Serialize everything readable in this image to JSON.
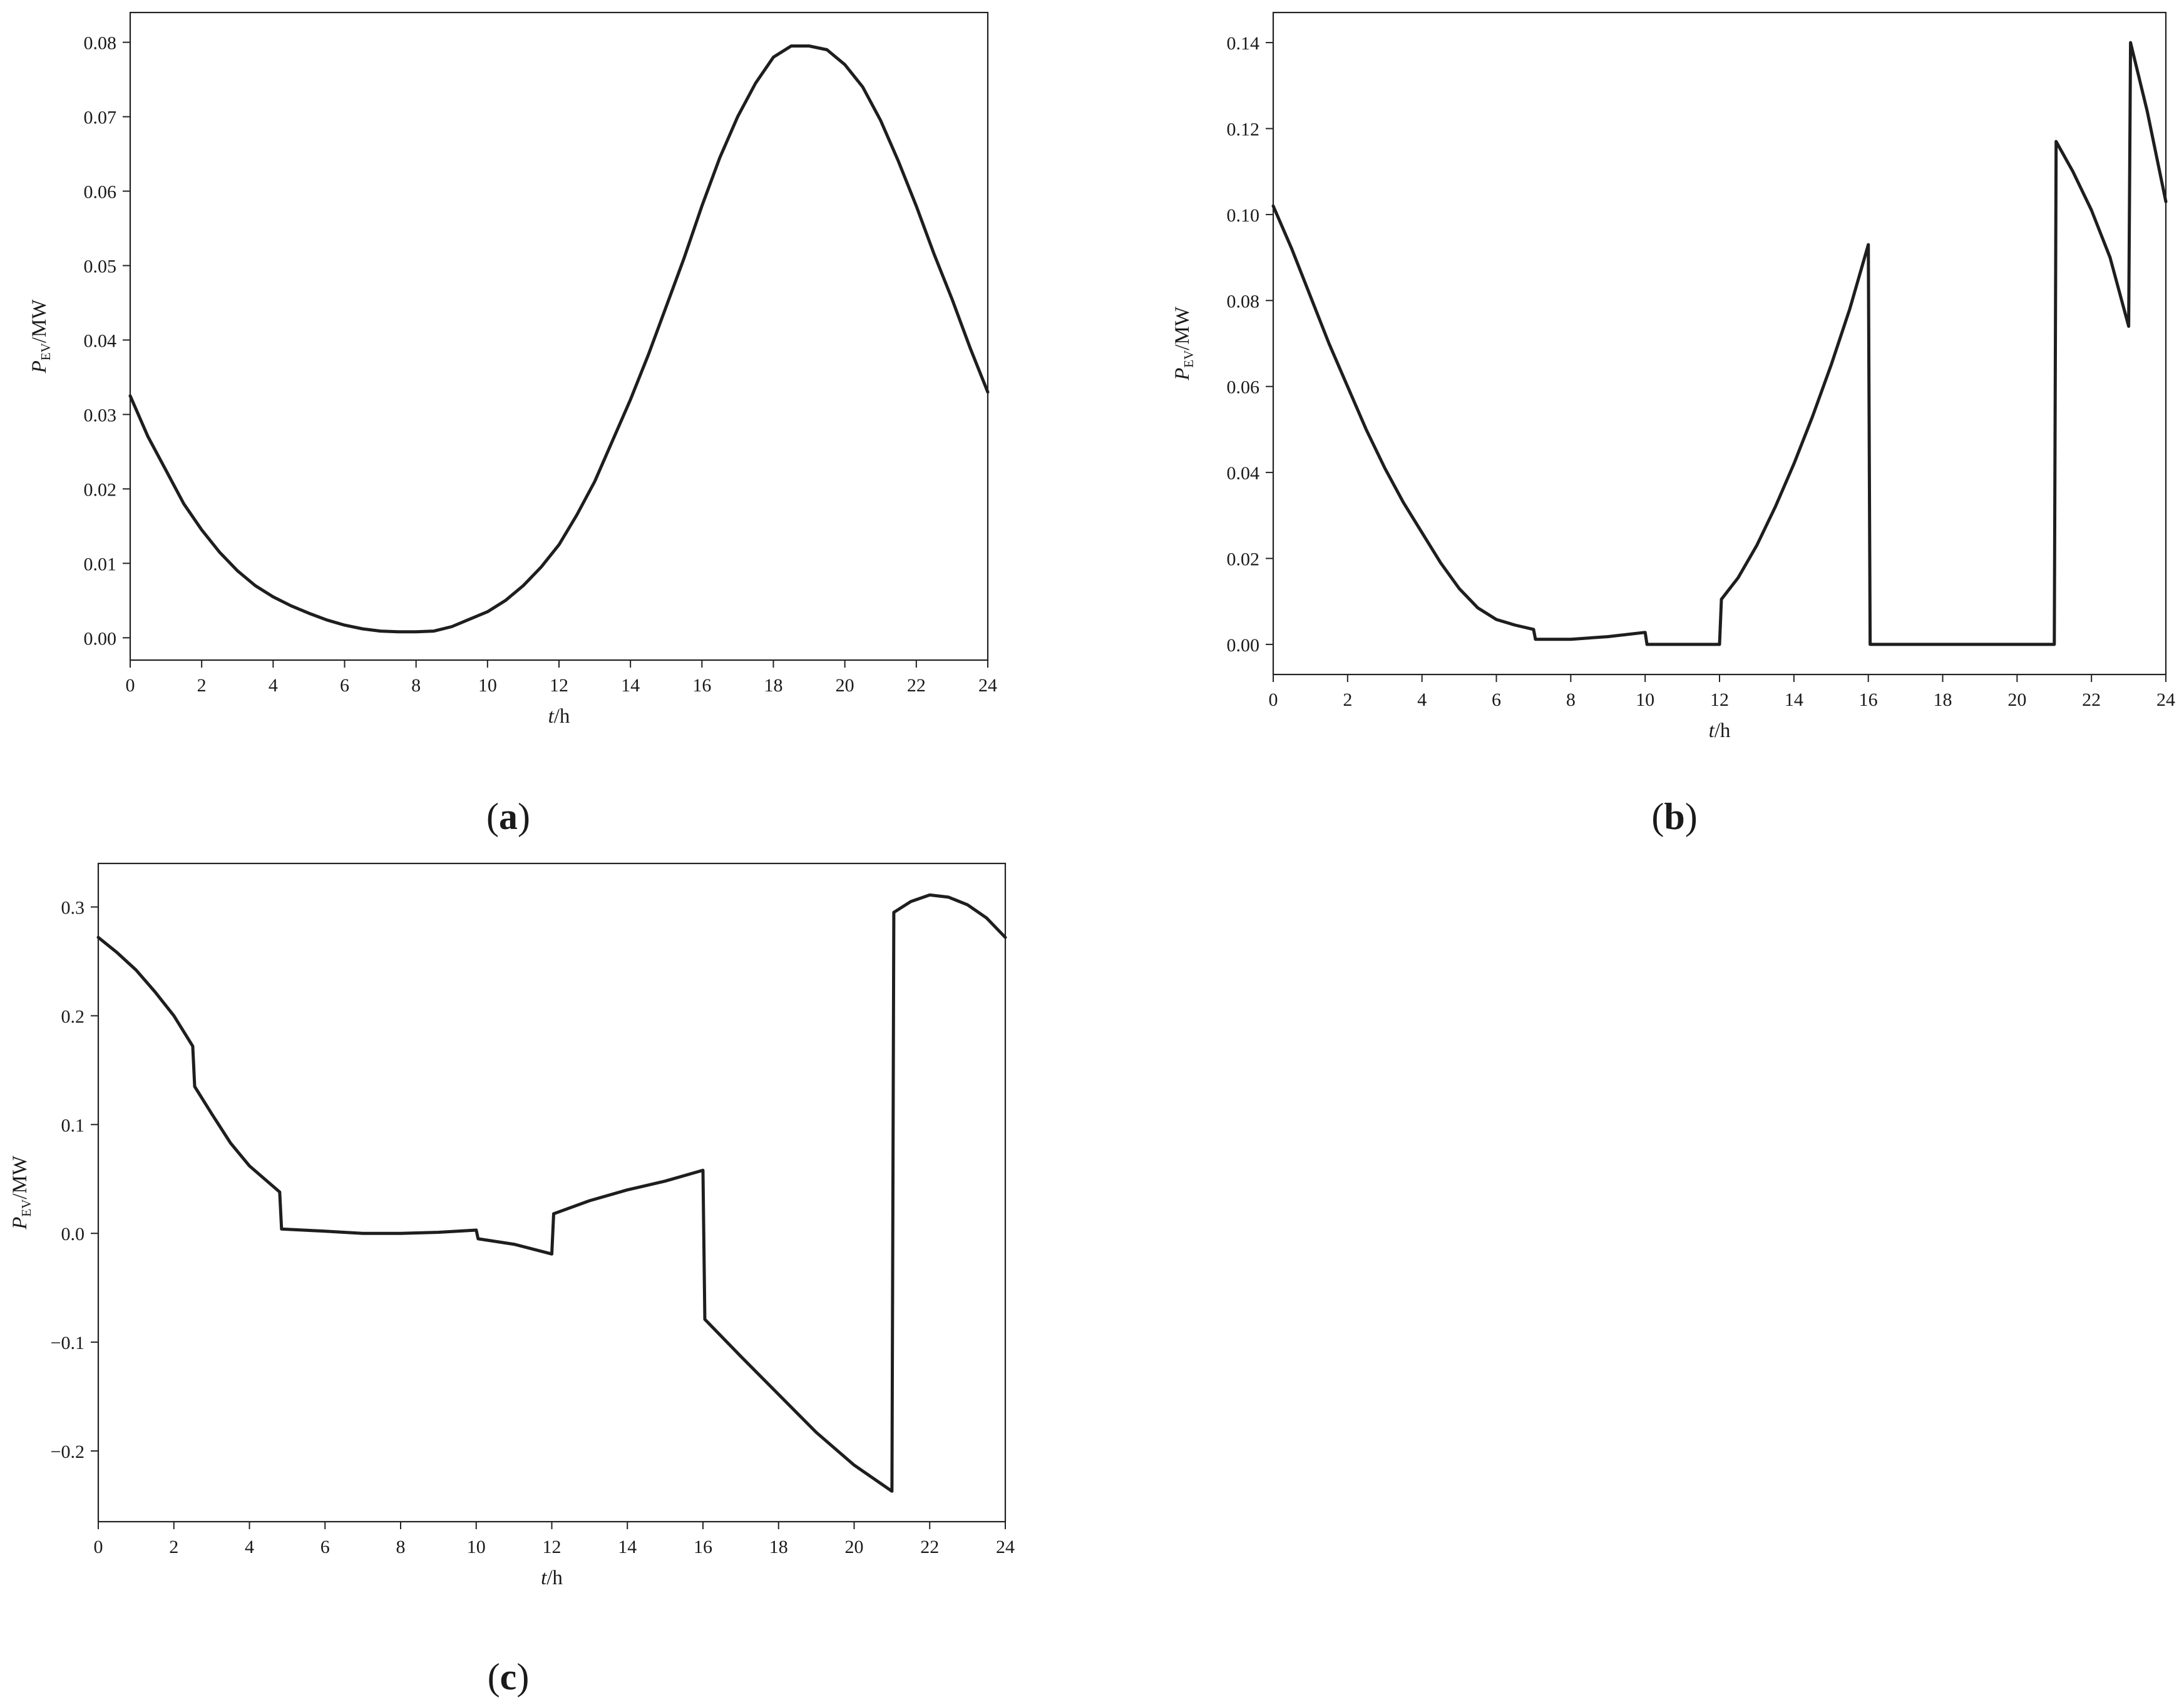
{
  "chart_data": [
    {
      "panel": "a",
      "type": "line",
      "title": "",
      "ylabel_main": "P",
      "ylabel_sub": "EV",
      "ylabel_unit": "/MW",
      "xlabel_main": "t",
      "xlabel_unit": "/h",
      "xlim": [
        0,
        24
      ],
      "ylim": [
        -0.003,
        0.084
      ],
      "xticks": [
        0,
        2,
        4,
        6,
        8,
        10,
        12,
        14,
        16,
        18,
        20,
        22,
        24
      ],
      "yticks": [
        0.0,
        0.01,
        0.02,
        0.03,
        0.04,
        0.05,
        0.06,
        0.07,
        0.08
      ],
      "ytick_labels": [
        "0.00",
        "0.01",
        "0.02",
        "0.03",
        "0.04",
        "0.05",
        "0.06",
        "0.07",
        "0.08"
      ],
      "xtick_labels": [
        "0",
        "2",
        "4",
        "6",
        "8",
        "10",
        "12",
        "14",
        "16",
        "18",
        "20",
        "22",
        "24"
      ],
      "grid": false,
      "series": [
        {
          "x": [
            0,
            0.5,
            1,
            1.5,
            2,
            2.5,
            3,
            3.5,
            4,
            4.5,
            5,
            5.5,
            6,
            6.5,
            7,
            7.5,
            8,
            8.5,
            9,
            9.5,
            10,
            10.5,
            11,
            11.5,
            12,
            12.5,
            13,
            13.5,
            14,
            14.5,
            15,
            15.5,
            16,
            16.5,
            17,
            17.5,
            18,
            18.5,
            19,
            19.5,
            20,
            20.5,
            21,
            21.5,
            22,
            22.5,
            23,
            23.5,
            24
          ],
          "y": [
            0.0325,
            0.027,
            0.0225,
            0.018,
            0.0145,
            0.0115,
            0.009,
            0.007,
            0.0055,
            0.0043,
            0.0033,
            0.0024,
            0.0017,
            0.0012,
            0.0009,
            0.0008,
            0.0008,
            0.0009,
            0.0015,
            0.0025,
            0.0035,
            0.005,
            0.007,
            0.0095,
            0.0125,
            0.0165,
            0.021,
            0.0265,
            0.032,
            0.038,
            0.0445,
            0.051,
            0.058,
            0.0645,
            0.07,
            0.0745,
            0.078,
            0.0795,
            0.0795,
            0.079,
            0.077,
            0.074,
            0.0695,
            0.064,
            0.058,
            0.0515,
            0.0455,
            0.039,
            0.033
          ]
        }
      ]
    },
    {
      "panel": "b",
      "type": "line",
      "title": "",
      "ylabel_main": "P",
      "ylabel_sub": "EV",
      "ylabel_unit": "/MW",
      "xlabel_main": "t",
      "xlabel_unit": "/h",
      "xlim": [
        0,
        24
      ],
      "ylim": [
        -0.007,
        0.147
      ],
      "xticks": [
        0,
        2,
        4,
        6,
        8,
        10,
        12,
        14,
        16,
        18,
        20,
        22,
        24
      ],
      "yticks": [
        0.0,
        0.02,
        0.04,
        0.06,
        0.08,
        0.1,
        0.12,
        0.14
      ],
      "ytick_labels": [
        "0.00",
        "0.02",
        "0.04",
        "0.06",
        "0.08",
        "0.10",
        "0.12",
        "0.14"
      ],
      "xtick_labels": [
        "0",
        "2",
        "4",
        "6",
        "8",
        "10",
        "12",
        "14",
        "16",
        "18",
        "20",
        "22",
        "24"
      ],
      "grid": false,
      "series": [
        {
          "x": [
            0,
            0.5,
            1,
            1.5,
            2,
            2.5,
            3,
            3.5,
            4,
            4.5,
            5,
            5.5,
            6,
            6.5,
            7,
            7.05,
            7.5,
            8,
            9,
            10,
            10.05,
            11,
            12,
            12.05,
            12.5,
            13,
            13.5,
            14,
            14.5,
            15,
            15.5,
            16,
            16.05,
            17,
            18,
            19,
            20,
            21,
            21.05,
            21.5,
            22,
            22.5,
            23,
            23.05,
            23.5,
            24
          ],
          "y": [
            0.102,
            0.092,
            0.081,
            0.07,
            0.06,
            0.05,
            0.041,
            0.033,
            0.026,
            0.019,
            0.013,
            0.0085,
            0.0058,
            0.0045,
            0.0035,
            0.0012,
            0.0012,
            0.0012,
            0.0018,
            0.0028,
            0.0,
            0.0,
            0.0,
            0.0105,
            0.0155,
            0.023,
            0.032,
            0.042,
            0.053,
            0.065,
            0.078,
            0.093,
            0.0,
            0.0,
            0.0,
            0.0,
            0.0,
            0.0,
            0.117,
            0.11,
            0.101,
            0.09,
            0.074,
            0.14,
            0.124,
            0.103
          ]
        }
      ]
    },
    {
      "panel": "c",
      "type": "line",
      "title": "",
      "ylabel_main": "P",
      "ylabel_sub": "EV",
      "ylabel_unit": "/MW",
      "xlabel_main": "t",
      "xlabel_unit": "/h",
      "xlim": [
        0,
        24
      ],
      "ylim": [
        -0.265,
        0.34
      ],
      "xticks": [
        0,
        2,
        4,
        6,
        8,
        10,
        12,
        14,
        16,
        18,
        20,
        22,
        24
      ],
      "yticks": [
        -0.2,
        -0.1,
        0.0,
        0.1,
        0.2,
        0.3
      ],
      "ytick_labels": [
        "−0.2",
        "−0.1",
        "0.0",
        "0.1",
        "0.2",
        "0.3"
      ],
      "xtick_labels": [
        "0",
        "2",
        "4",
        "6",
        "8",
        "10",
        "12",
        "14",
        "16",
        "18",
        "20",
        "22",
        "24"
      ],
      "grid": false,
      "series": [
        {
          "x": [
            0,
            0.5,
            1,
            1.5,
            2,
            2.5,
            2.55,
            3,
            3.5,
            4,
            4.5,
            4.8,
            4.85,
            6,
            7,
            8,
            9,
            10,
            10.05,
            11,
            12,
            12.05,
            13,
            14,
            15,
            16,
            16.05,
            17,
            18,
            19,
            20,
            21,
            21.05,
            21.5,
            22,
            22.5,
            23,
            23.5,
            24
          ],
          "y": [
            0.272,
            0.258,
            0.242,
            0.222,
            0.2,
            0.172,
            0.135,
            0.11,
            0.083,
            0.062,
            0.047,
            0.038,
            0.004,
            0.002,
            0.0,
            0.0,
            0.001,
            0.003,
            -0.005,
            -0.01,
            -0.019,
            0.018,
            0.03,
            0.04,
            0.048,
            0.058,
            -0.079,
            -0.113,
            -0.148,
            -0.183,
            -0.213,
            -0.237,
            0.295,
            0.305,
            0.311,
            0.309,
            0.302,
            0.29,
            0.272
          ]
        }
      ]
    }
  ],
  "panel_labels": [
    "a",
    "b",
    "c"
  ]
}
